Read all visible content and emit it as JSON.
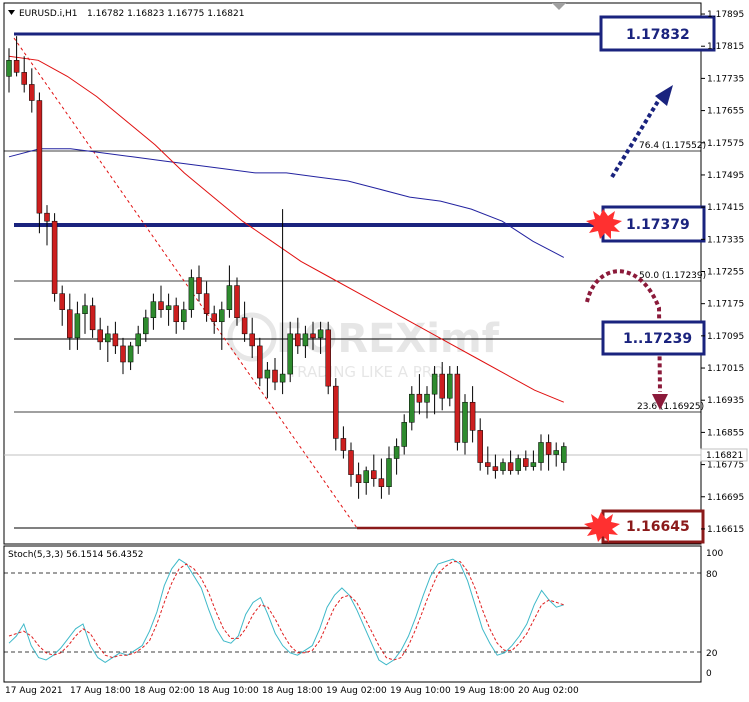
{
  "header": {
    "symbol": "EURUSD.i,H1",
    "ohlc": "1.16782 1.16823 1.16775 1.16821"
  },
  "stoch": {
    "label": "Stoch(5,3,3) 56.1514 56.4352",
    "ticks": [
      "100",
      "80",
      "20",
      "0"
    ],
    "k": [
      24,
      30,
      40,
      22,
      12,
      10,
      14,
      20,
      28,
      36,
      40,
      22,
      12,
      8,
      12,
      16,
      14,
      18,
      22,
      34,
      50,
      72,
      86,
      94,
      90,
      80,
      70,
      52,
      36,
      26,
      24,
      30,
      48,
      58,
      62,
      48,
      32,
      22,
      16,
      14,
      18,
      22,
      36,
      54,
      64,
      70,
      64,
      52,
      38,
      24,
      10,
      6,
      10,
      18,
      30,
      46,
      64,
      80,
      90,
      92,
      94,
      90,
      76,
      56,
      36,
      24,
      14,
      16,
      22,
      30,
      40,
      56,
      68,
      60,
      54,
      56
    ],
    "d": [
      30,
      32,
      34,
      30,
      22,
      16,
      14,
      16,
      22,
      30,
      36,
      32,
      22,
      14,
      12,
      14,
      14,
      16,
      20,
      26,
      40,
      58,
      74,
      86,
      90,
      86,
      78,
      66,
      50,
      36,
      28,
      28,
      36,
      48,
      56,
      54,
      44,
      32,
      22,
      16,
      16,
      18,
      26,
      40,
      54,
      62,
      64,
      58,
      46,
      34,
      22,
      12,
      10,
      12,
      22,
      36,
      52,
      68,
      82,
      88,
      92,
      92,
      84,
      70,
      52,
      36,
      24,
      18,
      18,
      24,
      32,
      44,
      56,
      60,
      58,
      56
    ]
  },
  "price_axis": [
    "1.17895",
    "1.17815",
    "1.17735",
    "1.17655",
    "1.17575",
    "1.17495",
    "1.17415",
    "1.17335",
    "1.17255",
    "1.17175",
    "1.17095",
    "1.17015",
    "1.16935",
    "1.16855",
    "1.16775",
    "1.16695",
    "1.16615"
  ],
  "current_price": "1.16821",
  "time_axis": [
    "17 Aug 2021",
    "17 Aug 18:00",
    "18 Aug 02:00",
    "18 Aug 10:00",
    "18 Aug 18:00",
    "19 Aug 02:00",
    "19 Aug 10:00",
    "19 Aug 18:00",
    "20 Aug 02:00"
  ],
  "fib_labels": {
    "f764": "76.4 (1.17552)",
    "f500": "50.0 (1.17239)",
    "f236": "23.6 (1.16925)"
  },
  "level_boxes": [
    {
      "text": "1.17832"
    },
    {
      "text": "1.17379"
    },
    {
      "text": "1..17239"
    },
    {
      "text": "1.16645"
    }
  ],
  "watermark": {
    "brand": "FOREXimf",
    "tagline": "TRADING LIKE A PRO"
  },
  "colors": {
    "bull": "#2e8b2e",
    "bear": "#cc1f1f",
    "ma_fast": "#e01010",
    "ma_slow": "#2323a0",
    "level": "#1a237e",
    "support": "#8b1a1a",
    "stoch_main": "#3fb9c9",
    "stoch_signal": "#e02020"
  },
  "chart_data": {
    "type": "candlestick",
    "title": "EURUSD.i,H1",
    "candles": [
      {
        "o": 1.1774,
        "h": 1.1781,
        "l": 1.177,
        "c": 1.1778
      },
      {
        "o": 1.1778,
        "h": 1.1784,
        "l": 1.1774,
        "c": 1.1775
      },
      {
        "o": 1.1775,
        "h": 1.1779,
        "l": 1.177,
        "c": 1.1772
      },
      {
        "o": 1.1772,
        "h": 1.1776,
        "l": 1.1765,
        "c": 1.1768
      },
      {
        "o": 1.1768,
        "h": 1.177,
        "l": 1.1735,
        "c": 1.174
      },
      {
        "o": 1.174,
        "h": 1.1742,
        "l": 1.1732,
        "c": 1.1738
      },
      {
        "o": 1.1738,
        "h": 1.174,
        "l": 1.1718,
        "c": 1.172
      },
      {
        "o": 1.172,
        "h": 1.1722,
        "l": 1.1712,
        "c": 1.1716
      },
      {
        "o": 1.1716,
        "h": 1.172,
        "l": 1.1706,
        "c": 1.1709
      },
      {
        "o": 1.1709,
        "h": 1.1718,
        "l": 1.1706,
        "c": 1.1715
      },
      {
        "o": 1.1715,
        "h": 1.172,
        "l": 1.171,
        "c": 1.1717
      },
      {
        "o": 1.1717,
        "h": 1.1719,
        "l": 1.1709,
        "c": 1.1711
      },
      {
        "o": 1.1711,
        "h": 1.1714,
        "l": 1.1706,
        "c": 1.1708
      },
      {
        "o": 1.1708,
        "h": 1.1712,
        "l": 1.1703,
        "c": 1.171
      },
      {
        "o": 1.171,
        "h": 1.1713,
        "l": 1.1705,
        "c": 1.1707
      },
      {
        "o": 1.1707,
        "h": 1.1709,
        "l": 1.17,
        "c": 1.1703
      },
      {
        "o": 1.1703,
        "h": 1.1708,
        "l": 1.1701,
        "c": 1.1707
      },
      {
        "o": 1.1707,
        "h": 1.1712,
        "l": 1.1705,
        "c": 1.171
      },
      {
        "o": 1.171,
        "h": 1.1716,
        "l": 1.1708,
        "c": 1.1714
      },
      {
        "o": 1.1714,
        "h": 1.172,
        "l": 1.1711,
        "c": 1.1718
      },
      {
        "o": 1.1718,
        "h": 1.1722,
        "l": 1.1714,
        "c": 1.1716
      },
      {
        "o": 1.1716,
        "h": 1.172,
        "l": 1.1712,
        "c": 1.1717
      },
      {
        "o": 1.1717,
        "h": 1.1719,
        "l": 1.171,
        "c": 1.1713
      },
      {
        "o": 1.1713,
        "h": 1.1718,
        "l": 1.1711,
        "c": 1.1716
      },
      {
        "o": 1.1716,
        "h": 1.1726,
        "l": 1.1714,
        "c": 1.1724
      },
      {
        "o": 1.1724,
        "h": 1.1727,
        "l": 1.1718,
        "c": 1.172
      },
      {
        "o": 1.172,
        "h": 1.1723,
        "l": 1.1713,
        "c": 1.1715
      },
      {
        "o": 1.1715,
        "h": 1.1717,
        "l": 1.171,
        "c": 1.1713
      },
      {
        "o": 1.1713,
        "h": 1.1718,
        "l": 1.1706,
        "c": 1.1716
      },
      {
        "o": 1.1716,
        "h": 1.1727,
        "l": 1.1714,
        "c": 1.1722
      },
      {
        "o": 1.1722,
        "h": 1.1724,
        "l": 1.1712,
        "c": 1.1714
      },
      {
        "o": 1.1714,
        "h": 1.1718,
        "l": 1.1708,
        "c": 1.171
      },
      {
        "o": 1.171,
        "h": 1.1714,
        "l": 1.1704,
        "c": 1.1707
      },
      {
        "o": 1.1707,
        "h": 1.1709,
        "l": 1.1697,
        "c": 1.1699
      },
      {
        "o": 1.1699,
        "h": 1.1703,
        "l": 1.1694,
        "c": 1.1701
      },
      {
        "o": 1.1701,
        "h": 1.1704,
        "l": 1.1696,
        "c": 1.1698
      },
      {
        "o": 1.1698,
        "h": 1.1741,
        "l": 1.1695,
        "c": 1.17
      },
      {
        "o": 1.17,
        "h": 1.1713,
        "l": 1.1698,
        "c": 1.171
      },
      {
        "o": 1.171,
        "h": 1.1714,
        "l": 1.1705,
        "c": 1.1707
      },
      {
        "o": 1.1707,
        "h": 1.1712,
        "l": 1.1704,
        "c": 1.171
      },
      {
        "o": 1.171,
        "h": 1.1713,
        "l": 1.1706,
        "c": 1.1709
      },
      {
        "o": 1.1709,
        "h": 1.1713,
        "l": 1.1705,
        "c": 1.1711
      },
      {
        "o": 1.1711,
        "h": 1.1713,
        "l": 1.1695,
        "c": 1.1697
      },
      {
        "o": 1.1697,
        "h": 1.1699,
        "l": 1.1681,
        "c": 1.1684
      },
      {
        "o": 1.1684,
        "h": 1.1687,
        "l": 1.1679,
        "c": 1.1681
      },
      {
        "o": 1.1681,
        "h": 1.1683,
        "l": 1.1672,
        "c": 1.1675
      },
      {
        "o": 1.1675,
        "h": 1.1678,
        "l": 1.1669,
        "c": 1.1673
      },
      {
        "o": 1.1673,
        "h": 1.1677,
        "l": 1.167,
        "c": 1.1676
      },
      {
        "o": 1.1676,
        "h": 1.168,
        "l": 1.1672,
        "c": 1.1674
      },
      {
        "o": 1.1674,
        "h": 1.1679,
        "l": 1.1669,
        "c": 1.1672
      },
      {
        "o": 1.1672,
        "h": 1.1682,
        "l": 1.167,
        "c": 1.1679
      },
      {
        "o": 1.1679,
        "h": 1.1684,
        "l": 1.1675,
        "c": 1.1682
      },
      {
        "o": 1.1682,
        "h": 1.169,
        "l": 1.168,
        "c": 1.1688
      },
      {
        "o": 1.1688,
        "h": 1.1697,
        "l": 1.1686,
        "c": 1.1695
      },
      {
        "o": 1.1695,
        "h": 1.17,
        "l": 1.169,
        "c": 1.1693
      },
      {
        "o": 1.1693,
        "h": 1.1697,
        "l": 1.1689,
        "c": 1.1695
      },
      {
        "o": 1.1695,
        "h": 1.1702,
        "l": 1.169,
        "c": 1.17
      },
      {
        "o": 1.17,
        "h": 1.1703,
        "l": 1.1691,
        "c": 1.1694
      },
      {
        "o": 1.1694,
        "h": 1.1702,
        "l": 1.1692,
        "c": 1.17
      },
      {
        "o": 1.17,
        "h": 1.1702,
        "l": 1.1681,
        "c": 1.1683
      },
      {
        "o": 1.1683,
        "h": 1.1695,
        "l": 1.168,
        "c": 1.1693
      },
      {
        "o": 1.1693,
        "h": 1.1697,
        "l": 1.1683,
        "c": 1.1686
      },
      {
        "o": 1.1686,
        "h": 1.1689,
        "l": 1.1676,
        "c": 1.1678
      },
      {
        "o": 1.1678,
        "h": 1.1682,
        "l": 1.1675,
        "c": 1.1677
      },
      {
        "o": 1.1677,
        "h": 1.168,
        "l": 1.1674,
        "c": 1.1676
      },
      {
        "o": 1.1676,
        "h": 1.1679,
        "l": 1.1675,
        "c": 1.1678
      },
      {
        "o": 1.1678,
        "h": 1.1681,
        "l": 1.1675,
        "c": 1.1676
      },
      {
        "o": 1.1676,
        "h": 1.168,
        "l": 1.1675,
        "c": 1.1679
      },
      {
        "o": 1.1679,
        "h": 1.1681,
        "l": 1.1676,
        "c": 1.1677
      },
      {
        "o": 1.1677,
        "h": 1.1681,
        "l": 1.1676,
        "c": 1.1678
      },
      {
        "o": 1.1678,
        "h": 1.1685,
        "l": 1.1676,
        "c": 1.1683
      },
      {
        "o": 1.1683,
        "h": 1.1685,
        "l": 1.1676,
        "c": 1.168
      },
      {
        "o": 1.168,
        "h": 1.1683,
        "l": 1.1677,
        "c": 1.1681
      },
      {
        "o": 1.1678,
        "h": 1.1683,
        "l": 1.1676,
        "c": 1.1682
      }
    ],
    "ylim": [
      1.1659,
      1.1791
    ],
    "ma_fast": [
      1.1779,
      1.1778,
      1.1774,
      1.1769,
      1.1763,
      1.1757,
      1.175,
      1.1744,
      1.1738,
      1.1733,
      1.1728,
      1.1724,
      1.172,
      1.1716,
      1.1712,
      1.1708,
      1.1704,
      1.17,
      1.1696,
      1.1693
    ],
    "ma_slow": [
      1.1754,
      1.1756,
      1.1756,
      1.1755,
      1.1754,
      1.1753,
      1.1752,
      1.1751,
      1.175,
      1.175,
      1.1749,
      1.1748,
      1.1746,
      1.1744,
      1.1743,
      1.1741,
      1.1738,
      1.1733,
      1.1729
    ],
    "levels": [
      1.17832,
      1.17379,
      1.17239,
      1.16645
    ],
    "fib": {
      "76.4": 1.17552,
      "50.0": 1.17239,
      "23.6": 1.16925
    },
    "grid": false,
    "legend": "none"
  }
}
